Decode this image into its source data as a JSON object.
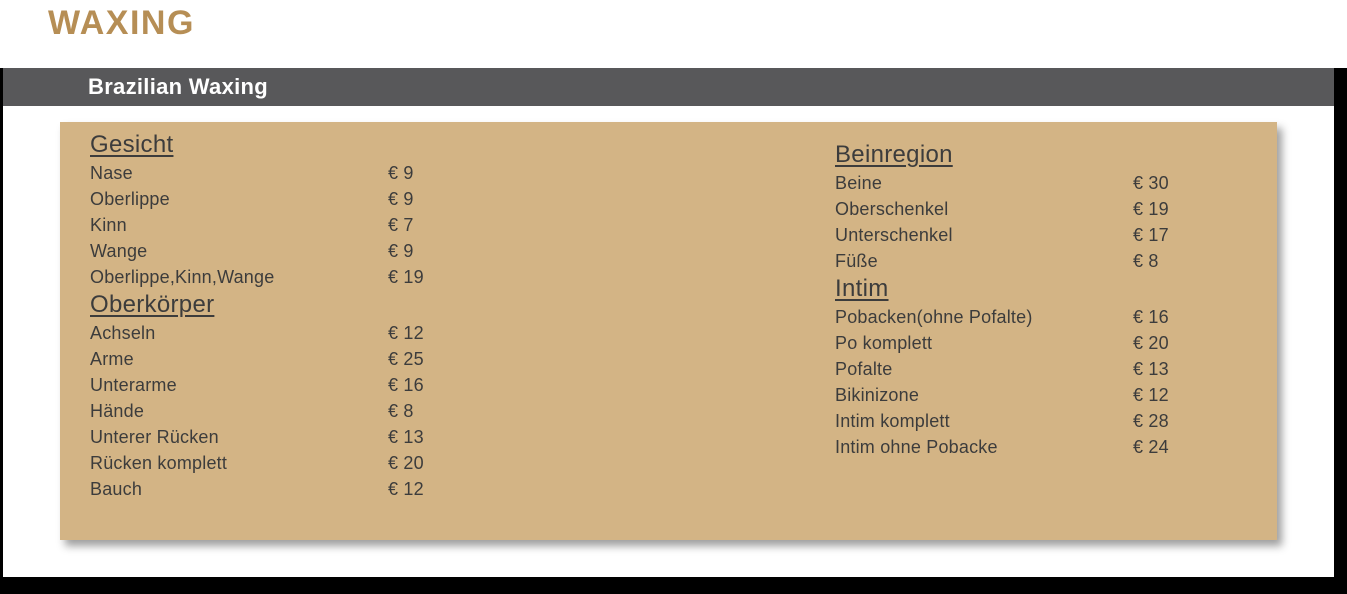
{
  "page": {
    "title": "WAXING"
  },
  "header": {
    "label": "Brazilian Waxing"
  },
  "colors": {
    "gold": "#b68e55",
    "tan": "#d3b485",
    "bar_gray": "#58585a",
    "text_dark": "#3c3c3c",
    "frame_black": "#000000",
    "page_white": "#ffffff"
  },
  "menu": {
    "left_sections": [
      {
        "heading": "Gesicht",
        "items": [
          {
            "label": "Nase",
            "price": "€ 9"
          },
          {
            "label": "Oberlippe",
            "price": "€ 9"
          },
          {
            "label": "Kinn",
            "price": "€ 7"
          },
          {
            "label": "Wange",
            "price": "€ 9"
          },
          {
            "label": "Oberlippe,Kinn,Wange",
            "price": "€ 19"
          }
        ]
      },
      {
        "heading": "Oberkörper",
        "items": [
          {
            "label": "Achseln",
            "price": "€ 12"
          },
          {
            "label": "Arme",
            "price": "€ 25"
          },
          {
            "label": "Unterarme",
            "price": "€ 16"
          },
          {
            "label": "Hände",
            "price": "€ 8"
          },
          {
            "label": "Unterer Rücken",
            "price": "€ 13"
          },
          {
            "label": "Rücken komplett",
            "price": "€ 20"
          },
          {
            "label": "Bauch",
            "price": "€ 12"
          }
        ]
      }
    ],
    "right_sections": [
      {
        "heading": "Beinregion",
        "items": [
          {
            "label": "Beine",
            "price": "€ 30"
          },
          {
            "label": "Oberschenkel",
            "price": "€ 19"
          },
          {
            "label": "Unterschenkel",
            "price": "€ 17"
          },
          {
            "label": "Füße",
            "price": "€ 8"
          }
        ]
      },
      {
        "heading": "Intim",
        "items": [
          {
            "label": "Pobacken(ohne Pofalte)",
            "price": "€ 16"
          },
          {
            "label": "Po komplett",
            "price": "€ 20"
          },
          {
            "label": "Pofalte",
            "price": "€ 13"
          },
          {
            "label": "Bikinizone",
            "price": "€ 12"
          },
          {
            "label": "Intim komplett",
            "price": "€ 28"
          },
          {
            "label": "Intim ohne Pobacke",
            "price": "€ 24"
          }
        ]
      }
    ]
  }
}
